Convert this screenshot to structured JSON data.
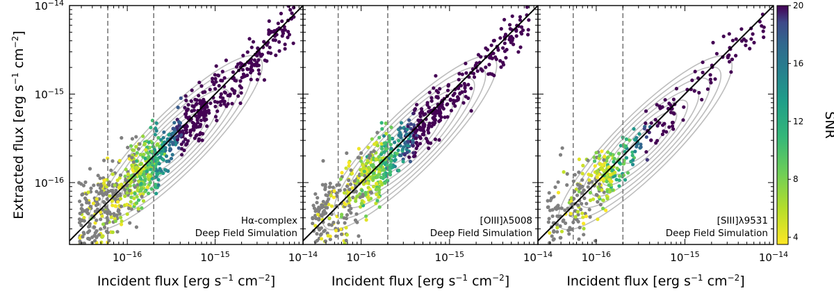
{
  "figure": {
    "ylabel_html": "Extracted flux [erg s<tspan baseline-shift='super' font-size='12'>−1</tspan> cm<tspan baseline-shift='super' font-size='12'>−2</tspan>]",
    "xlabel_html": "Incident flux [erg s<tspan baseline-shift='super' font-size='12'>−1</tspan> cm<tspan baseline-shift='super' font-size='12'>−2</tspan>]",
    "colorbar": {
      "label": "SNR",
      "ticks": [
        4,
        8,
        12,
        16,
        20
      ],
      "range": [
        3.5,
        20
      ]
    }
  },
  "chart_data": [
    {
      "type": "scatter",
      "x_scale": "log",
      "y_scale": "log",
      "xlim": [
        2.2e-17,
        1e-14
      ],
      "ylim": [
        2e-17,
        1e-14
      ],
      "x_ticks": [
        "10^-16",
        "10^-15",
        "10^-14"
      ],
      "y_ticks": [
        "10^-16",
        "10^-15",
        "10^-14"
      ],
      "vlines": [
        6e-17,
        2e-16
      ],
      "one_to_one_line": true,
      "annotation": [
        "Hα-complex",
        "Deep Field Simulation"
      ],
      "seed": 11
    },
    {
      "type": "scatter",
      "x_scale": "log",
      "y_scale": "log",
      "xlim": [
        2.2e-17,
        1e-14
      ],
      "ylim": [
        2e-17,
        1e-14
      ],
      "x_ticks": [
        "10^-16",
        "10^-15",
        "10^-14"
      ],
      "vlines": [
        5.5e-17,
        2e-16
      ],
      "one_to_one_line": true,
      "annotation": [
        "[OIII]λ5008",
        "Deep Field Simulation"
      ],
      "seed": 23
    },
    {
      "type": "scatter",
      "x_scale": "log",
      "y_scale": "log",
      "xlim": [
        2.2e-17,
        1e-14
      ],
      "ylim": [
        2e-17,
        1e-14
      ],
      "x_ticks": [
        "10^-16",
        "10^-15",
        "10^-14"
      ],
      "vlines": [
        5.5e-17,
        2e-16
      ],
      "one_to_one_line": true,
      "annotation": [
        "[SIII]λ9531",
        "Deep Field Simulation"
      ],
      "seed": 37
    }
  ]
}
